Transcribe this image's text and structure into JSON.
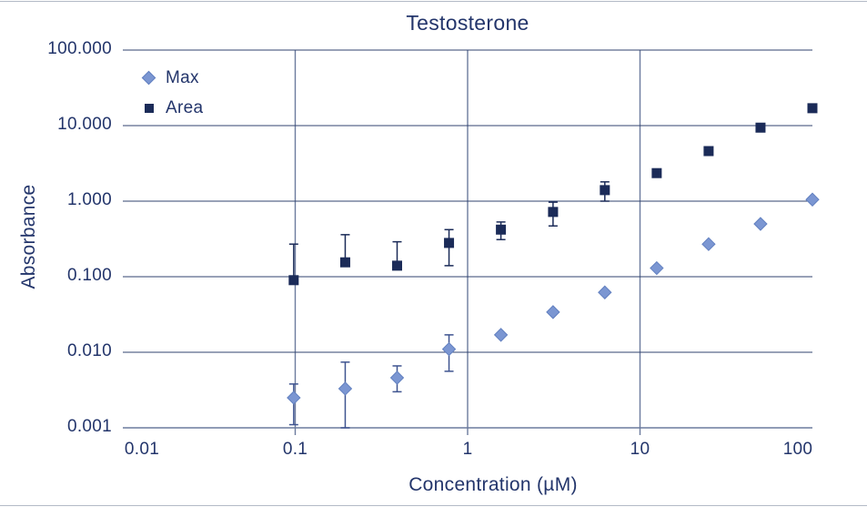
{
  "chart_data": {
    "type": "scatter",
    "title": "Testosterone",
    "xlabel": "Concentration (µM)",
    "ylabel": "Absorbance",
    "x_scale": "log",
    "y_scale": "log",
    "xlim": [
      0.01,
      100
    ],
    "ylim": [
      0.001,
      100
    ],
    "x_ticks": [
      0.01,
      0.1,
      1,
      10,
      100
    ],
    "x_tick_labels": [
      "0.01",
      "0.1",
      "1",
      "10",
      "100"
    ],
    "y_ticks": [
      100,
      10,
      1,
      0.1,
      0.01,
      0.001
    ],
    "y_tick_labels": [
      "100.000",
      "10.000",
      "1.000",
      "0.100",
      "0.010",
      "0.001"
    ],
    "x_gridlines": [
      0.1,
      1,
      10
    ],
    "grid": {
      "horizontal": true,
      "vertical": true
    },
    "legend_position": "top-left-inside",
    "x": [
      0.098,
      0.195,
      0.39,
      0.78,
      1.56,
      3.13,
      6.25,
      12.5,
      25,
      50,
      100
    ],
    "series": [
      {
        "name": "Max",
        "marker": "diamond",
        "color": "#7b96d2",
        "edge_color": "#6280c0",
        "error_color": "#3f5490",
        "values": [
          0.0025,
          0.0033,
          0.0046,
          0.011,
          0.017,
          0.034,
          0.062,
          0.13,
          0.27,
          0.5,
          1.05
        ],
        "error_low": [
          0.0011,
          0.001,
          0.003,
          0.0056,
          null,
          null,
          null,
          null,
          null,
          null,
          null
        ],
        "error_high": [
          0.0038,
          0.0074,
          0.0066,
          0.017,
          null,
          null,
          null,
          null,
          null,
          null,
          null
        ]
      },
      {
        "name": "Area",
        "marker": "square",
        "color": "#1b2b58",
        "edge_color": "#1b2b58",
        "error_color": "#1b2b58",
        "values": [
          0.09,
          0.155,
          0.14,
          0.28,
          0.42,
          0.72,
          1.4,
          2.35,
          4.6,
          9.4,
          17
        ],
        "error_low": [
          null,
          null,
          null,
          0.14,
          0.31,
          0.47,
          1.0,
          null,
          null,
          null,
          null
        ],
        "error_high": [
          0.27,
          0.36,
          0.29,
          0.42,
          0.53,
          0.97,
          1.8,
          null,
          null,
          null,
          null
        ]
      }
    ],
    "colors": {
      "text": "#23356b",
      "h_gridline": "#32436f",
      "v_gridline": "#6b7b9d",
      "bottom_axis": "#6b7b9d",
      "page_rule": "#b3bac6"
    }
  }
}
